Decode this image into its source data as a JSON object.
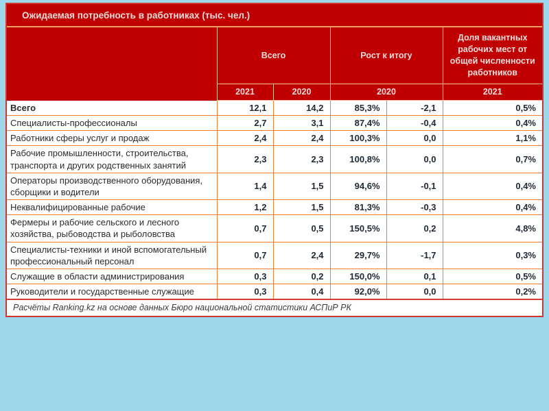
{
  "title": "Ожидаемая потребность в работниках (тыс. чел.)",
  "footer": "Расчёты Ranking.kz на основе данных Бюро национальной статистики АСПиР РК",
  "header": {
    "group_total": "Всего",
    "group_growth": "Рост к итогу",
    "group_share": "Доля вакантных рабочих мест от общей численности работников",
    "years": [
      "2021",
      "2020",
      "2020",
      "2021"
    ]
  },
  "colors": {
    "page_background": "#9DD7E9",
    "header_background": "#C00000",
    "header_text": "#F2DCDB",
    "title_underline": "#EFA35F",
    "header_grid": "#F2C29C",
    "data_grid": "#ED7D31",
    "outer_border": "#CE3430",
    "data_text": "#1F2835"
  },
  "chart_data": {
    "type": "table",
    "title": "Ожидаемая потребность в работниках (тыс. чел.)",
    "column_groups": [
      "Всего",
      "Рост к итогу",
      "Доля вакантных рабочих мест от общей численности работников"
    ],
    "columns": [
      "",
      "Всего 2021",
      "Всего 2020",
      "Рост к итогу 2020 (%)",
      "Рост к итогу 2020 (+/-)",
      "Доля вакантных рабочих мест 2021"
    ],
    "rows": [
      {
        "label": "Всего",
        "bold": true,
        "values": [
          "12,1",
          "14,2",
          "85,3%",
          "-2,1",
          "0,5%"
        ]
      },
      {
        "label": "Специалисты-профессионалы",
        "bold": false,
        "values": [
          "2,7",
          "3,1",
          "87,4%",
          "-0,4",
          "0,4%"
        ]
      },
      {
        "label": "Работники сферы услуг и продаж",
        "bold": false,
        "values": [
          "2,4",
          "2,4",
          "100,3%",
          "0,0",
          "1,1%"
        ]
      },
      {
        "label": "Рабочие промышленности, строительства, транспорта и других родственных занятий",
        "bold": false,
        "values": [
          "2,3",
          "2,3",
          "100,8%",
          "0,0",
          "0,7%"
        ]
      },
      {
        "label": "Операторы производственного оборудования, сборщики и водители",
        "bold": false,
        "values": [
          "1,4",
          "1,5",
          "94,6%",
          "-0,1",
          "0,4%"
        ]
      },
      {
        "label": "Неквалифицированные рабочие",
        "bold": false,
        "values": [
          "1,2",
          "1,5",
          "81,3%",
          "-0,3",
          "0,4%"
        ]
      },
      {
        "label": "Фермеры и рабочие сельского и лесного хозяйства, рыбоводства и рыболовства",
        "bold": false,
        "values": [
          "0,7",
          "0,5",
          "150,5%",
          "0,2",
          "4,8%"
        ]
      },
      {
        "label": "Специалисты-техники и иной вспомогательный профессиональный персонал",
        "bold": false,
        "values": [
          "0,7",
          "2,4",
          "29,7%",
          "-1,7",
          "0,3%"
        ]
      },
      {
        "label": "Служащие в области администрирования",
        "bold": false,
        "values": [
          "0,3",
          "0,2",
          "150,0%",
          "0,1",
          "0,5%"
        ]
      },
      {
        "label": "Руководители и государственные служащие",
        "bold": false,
        "values": [
          "0,3",
          "0,4",
          "92,0%",
          "0,0",
          "0,2%"
        ]
      }
    ],
    "source_note": "Расчёты Ranking.kz на основе данных Бюро национальной статистики АСПиР РК"
  }
}
